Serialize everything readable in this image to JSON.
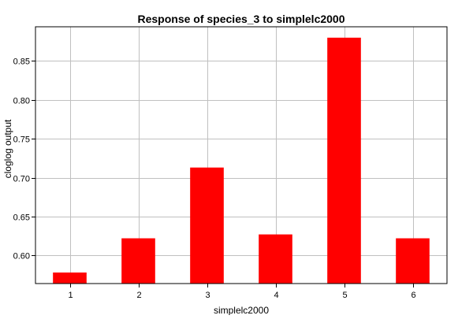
{
  "chart_data": {
    "type": "bar",
    "title": "Response of species_3 to simplelc2000",
    "xlabel": "simplelc2000",
    "ylabel": "cloglog output",
    "categories": [
      "1",
      "2",
      "3",
      "4",
      "5",
      "6"
    ],
    "values": [
      0.578,
      0.622,
      0.713,
      0.627,
      0.88,
      0.622
    ],
    "ylim": [
      0.5638,
      0.894
    ],
    "yticks": [
      0.6,
      0.65,
      0.7,
      0.75,
      0.8,
      0.85
    ],
    "ytick_labels": [
      "0.60",
      "0.65",
      "0.70",
      "0.75",
      "0.80",
      "0.85"
    ],
    "grid": true,
    "legend": "none",
    "bar_color": "#ff0000",
    "grid_color": "#c0c0c0"
  }
}
